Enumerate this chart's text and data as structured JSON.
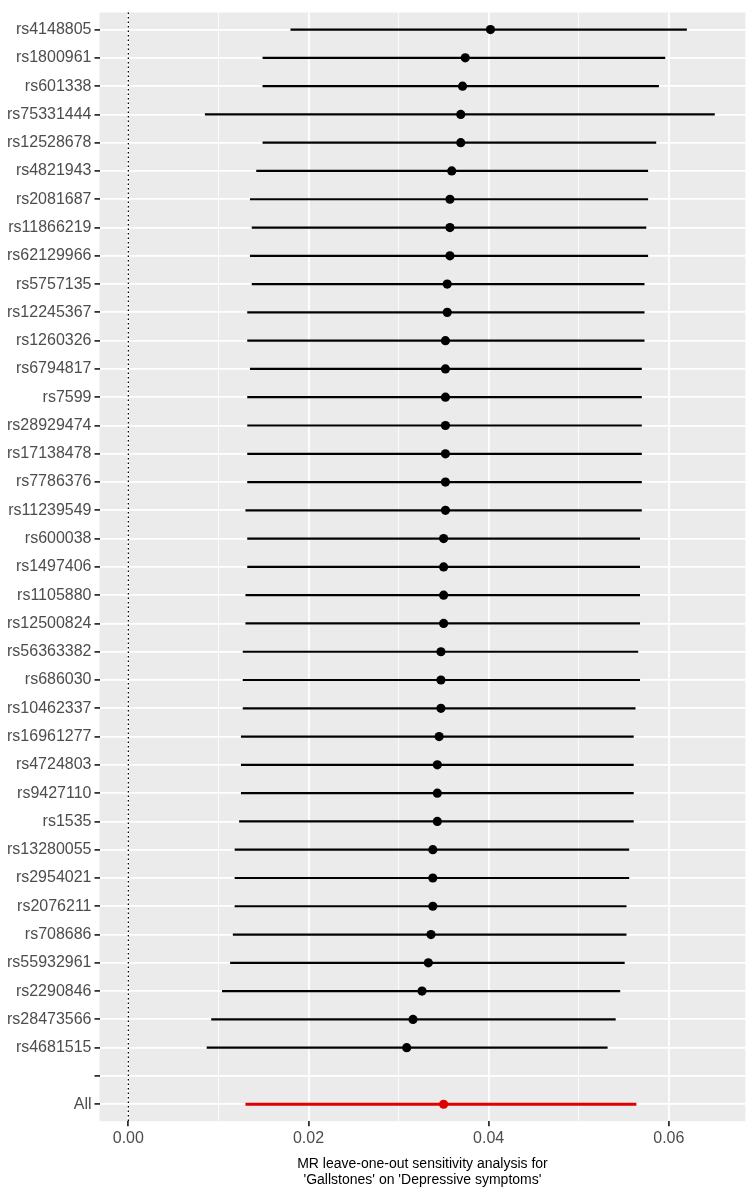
{
  "chart_data": {
    "type": "scatter",
    "orientation": "horizontal",
    "xlabel": "MR leave-one-out sensitivity analysis for\n'Gallstones' on 'Depressive symptoms'",
    "categories": [
      "rs4148805",
      "rs1800961",
      "rs601338",
      "rs75331444",
      "rs12528678",
      "rs4821943",
      "rs2081687",
      "rs11866219",
      "rs62129966",
      "rs5757135",
      "rs12245367",
      "rs1260326",
      "rs6794817",
      "rs7599",
      "rs28929474",
      "rs17138478",
      "rs7786376",
      "rs11239549",
      "rs600038",
      "rs1497406",
      "rs1105880",
      "rs12500824",
      "rs56363382",
      "rs686030",
      "rs10462337",
      "rs16961277",
      "rs4724803",
      "rs9427110",
      "rs1535",
      "rs13280055",
      "rs2954021",
      "rs2076211",
      "rs708686",
      "rs55932961",
      "rs2290846",
      "rs28473566",
      "rs4681515",
      null,
      "All"
    ],
    "values": [
      0.0402,
      0.0374,
      0.0371,
      0.0369,
      0.0369,
      0.0359,
      0.0357,
      0.0357,
      0.0357,
      0.0354,
      0.0354,
      0.0352,
      0.0352,
      0.0352,
      0.0352,
      0.0352,
      0.0352,
      0.0352,
      0.035,
      0.035,
      0.035,
      0.035,
      0.0347,
      0.0347,
      0.0347,
      0.0345,
      0.0343,
      0.0343,
      0.0343,
      0.0338,
      0.0338,
      0.0338,
      0.0336,
      0.0333,
      0.0326,
      0.0316,
      0.0309,
      null,
      0.035
    ],
    "errors": [
      [
        0.018,
        0.062
      ],
      [
        0.0149,
        0.0596
      ],
      [
        0.0149,
        0.0589
      ],
      [
        0.0085,
        0.0651
      ],
      [
        0.0149,
        0.0586
      ],
      [
        0.0142,
        0.0577
      ],
      [
        0.0135,
        0.0577
      ],
      [
        0.0137,
        0.0575
      ],
      [
        0.0135,
        0.0577
      ],
      [
        0.0137,
        0.0573
      ],
      [
        0.0132,
        0.0573
      ],
      [
        0.0132,
        0.0573
      ],
      [
        0.0135,
        0.057
      ],
      [
        0.0132,
        0.057
      ],
      [
        0.0132,
        0.057
      ],
      [
        0.0132,
        0.057
      ],
      [
        0.0132,
        0.057
      ],
      [
        0.013,
        0.057
      ],
      [
        0.0132,
        0.0568
      ],
      [
        0.0132,
        0.0568
      ],
      [
        0.013,
        0.0568
      ],
      [
        0.013,
        0.0568
      ],
      [
        0.0127,
        0.0566
      ],
      [
        0.0127,
        0.0568
      ],
      [
        0.0127,
        0.0563
      ],
      [
        0.0125,
        0.0561
      ],
      [
        0.0125,
        0.0561
      ],
      [
        0.0125,
        0.0561
      ],
      [
        0.0123,
        0.0561
      ],
      [
        0.0118,
        0.0556
      ],
      [
        0.0118,
        0.0556
      ],
      [
        0.0118,
        0.0553
      ],
      [
        0.0116,
        0.0553
      ],
      [
        0.0113,
        0.0551
      ],
      [
        0.0104,
        0.0546
      ],
      [
        0.0092,
        0.0541
      ],
      [
        0.0087,
        0.0532
      ],
      null,
      [
        0.013,
        0.0564
      ]
    ],
    "colors": [
      "#000000",
      "#000000",
      "#000000",
      "#000000",
      "#000000",
      "#000000",
      "#000000",
      "#000000",
      "#000000",
      "#000000",
      "#000000",
      "#000000",
      "#000000",
      "#000000",
      "#000000",
      "#000000",
      "#000000",
      "#000000",
      "#000000",
      "#000000",
      "#000000",
      "#000000",
      "#000000",
      "#000000",
      "#000000",
      "#000000",
      "#000000",
      "#000000",
      "#000000",
      "#000000",
      "#000000",
      "#000000",
      "#000000",
      "#000000",
      "#000000",
      "#000000",
      "#000000",
      null,
      "#e00000"
    ],
    "xlim": [
      -0.0032,
      0.0685
    ],
    "xticks": [
      {
        "value": 0,
        "label": "0.00"
      },
      {
        "value": 0.01,
        "label": null
      },
      {
        "value": 0.02,
        "label": "0.02"
      },
      {
        "value": 0.03,
        "label": null
      },
      {
        "value": 0.04,
        "label": "0.04"
      },
      {
        "value": 0.05,
        "label": null
      },
      {
        "value": 0.06,
        "label": "0.06"
      }
    ],
    "ref_lines": [
      {
        "axis": "x",
        "value": 0,
        "label": null,
        "line_style": "dotted",
        "color": "#000000"
      }
    ],
    "grid": true,
    "marker": "circle"
  }
}
